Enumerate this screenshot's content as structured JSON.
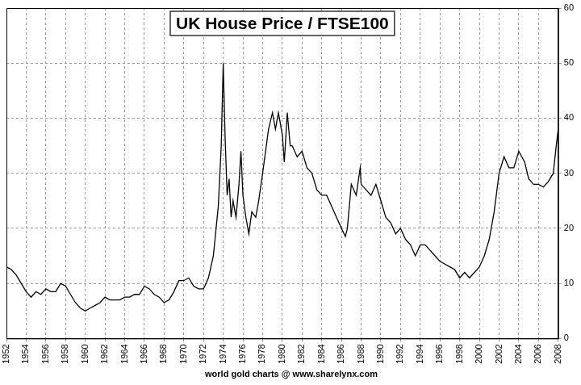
{
  "chart_data": {
    "type": "line",
    "title": "UK House Price / FTSE100",
    "annotations": [
      "world gold charts @ www.sharelynx.com"
    ],
    "x": [
      1952,
      1952.5,
      1953,
      1953.5,
      1954,
      1954.5,
      1955,
      1955.5,
      1956,
      1956.5,
      1957,
      1957.5,
      1958,
      1958.5,
      1959,
      1959.5,
      1960,
      1960.5,
      1961,
      1961.5,
      1962,
      1962.5,
      1963,
      1963.5,
      1964,
      1964.5,
      1965,
      1965.5,
      1966,
      1966.5,
      1967,
      1967.5,
      1968,
      1968.5,
      1969,
      1969.5,
      1970,
      1970.5,
      1971,
      1971.5,
      1972,
      1972.5,
      1973,
      1973.5,
      1973.8,
      1974,
      1974.2,
      1974.4,
      1974.6,
      1974.8,
      1975,
      1975.3,
      1975.6,
      1975.8,
      1976,
      1976.3,
      1976.6,
      1976.9,
      1977.3,
      1977.6,
      1978,
      1978.3,
      1978.6,
      1979,
      1979.3,
      1979.6,
      1980,
      1980.2,
      1980.5,
      1980.8,
      1981,
      1981.5,
      1982,
      1982.5,
      1983,
      1983.5,
      1984,
      1984.5,
      1985,
      1985.5,
      1986,
      1986.4,
      1986.6,
      1987,
      1987.5,
      1987.9,
      1988,
      1988.5,
      1989,
      1989.5,
      1990,
      1990.5,
      1991,
      1991.5,
      1992,
      1992.5,
      1993,
      1993.5,
      1994,
      1994.5,
      1995,
      1995.5,
      1996,
      1996.5,
      1997,
      1997.5,
      1998,
      1998.5,
      1999,
      1999.5,
      2000,
      2000.5,
      2001,
      2001.5,
      2002,
      2002.5,
      2003,
      2003.5,
      2004,
      2004.3,
      2004.6,
      2005,
      2005.5,
      2006,
      2006.5,
      2007,
      2007.5,
      2007.8,
      2008
    ],
    "values": [
      13,
      12.5,
      11.5,
      10,
      8.5,
      7.5,
      8.5,
      8,
      9,
      8.5,
      8.5,
      10,
      9.5,
      8,
      6.5,
      5.5,
      5,
      5.5,
      6,
      6.5,
      7.5,
      7,
      7,
      7,
      7.5,
      7.5,
      8,
      8,
      9.5,
      9,
      8,
      7.5,
      6.5,
      7,
      8.5,
      10.5,
      10.5,
      11,
      9.5,
      9,
      9,
      11,
      15,
      24,
      35,
      50,
      36,
      26,
      29,
      22,
      25,
      22,
      28,
      34,
      26,
      22,
      19,
      23,
      22,
      25,
      30,
      34,
      38,
      41,
      38,
      41,
      37,
      32,
      41,
      35,
      35,
      33,
      34,
      31,
      30,
      27,
      26,
      26,
      24,
      22,
      20,
      18.5,
      20,
      28,
      26,
      31,
      28,
      27,
      26,
      28,
      25,
      22,
      21,
      19,
      20,
      18,
      17,
      15,
      17,
      17,
      16,
      15,
      14,
      13.5,
      13,
      12.5,
      11,
      12,
      11,
      12,
      13,
      15,
      18,
      23,
      30,
      33,
      31,
      31,
      34,
      33,
      32,
      29,
      28,
      28,
      27.5,
      28.5,
      30,
      35,
      38
    ],
    "color": "#000000",
    "xlim": [
      1952,
      2008
    ],
    "xticks": [
      1952,
      1954,
      1956,
      1958,
      1960,
      1962,
      1964,
      1966,
      1968,
      1970,
      1972,
      1974,
      1976,
      1978,
      1980,
      1982,
      1984,
      1986,
      1988,
      1990,
      1992,
      1994,
      1996,
      1998,
      2000,
      2002,
      2004,
      2006,
      2008
    ],
    "ylim": [
      0,
      60
    ],
    "yticks": [
      0,
      10,
      20,
      30,
      40,
      50,
      60
    ],
    "grid": true
  }
}
